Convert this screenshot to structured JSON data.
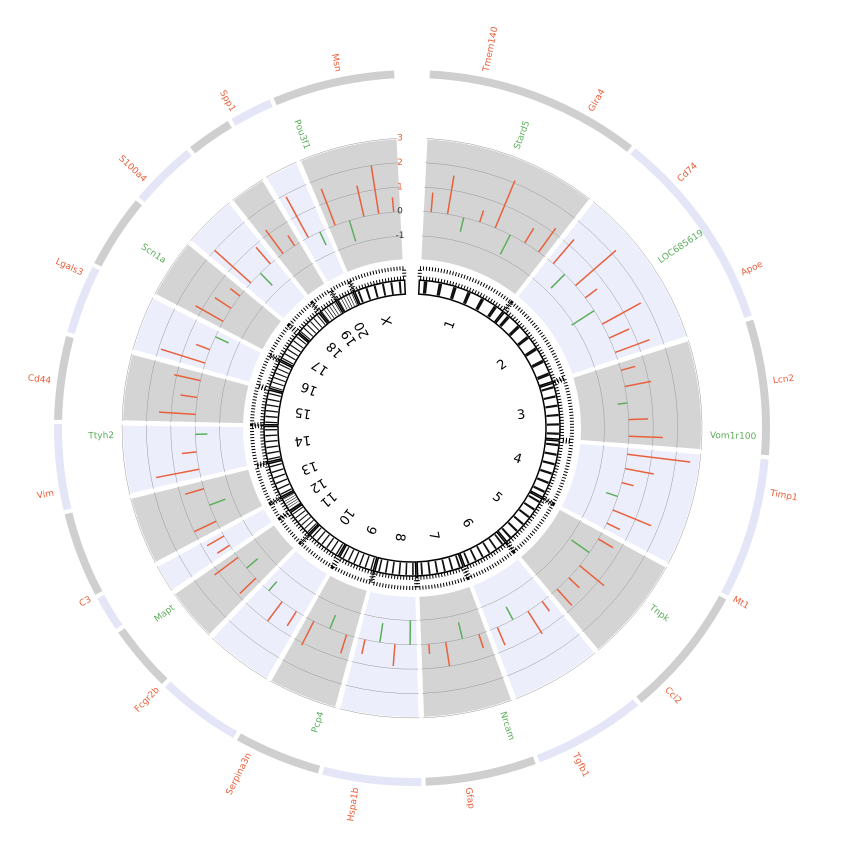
{
  "chart_data": {
    "type": "circos",
    "categories": [
      "1",
      "2",
      "3",
      "4",
      "5",
      "6",
      "7",
      "8",
      "9",
      "10",
      "11",
      "12",
      "13",
      "14",
      "15",
      "16",
      "17",
      "18",
      "19",
      "20",
      "X"
    ],
    "lengths": [
      282,
      266,
      177,
      184,
      173,
      147,
      145,
      129,
      113,
      110,
      87,
      46,
      111,
      112,
      109,
      90,
      97,
      87,
      59,
      55,
      160
    ],
    "ylim": [
      -2,
      3
    ],
    "yticks": [
      -1,
      0,
      1,
      2,
      3
    ],
    "peaks": [
      [
        0.8,
        1.6,
        -0.6,
        0.5,
        2.1,
        -0.9,
        0.7,
        1.2
      ],
      [
        1.3,
        -0.8,
        2.2,
        0.6,
        -1.1,
        1.8,
        0.9,
        1.5
      ],
      [
        0.6,
        1.1,
        -0.4,
        0.8,
        1.4
      ],
      [
        2.6,
        1.2,
        0.5,
        -0.5,
        1.7,
        0.6
      ],
      [
        0.7,
        -0.9,
        1.3,
        0.6,
        0.9
      ],
      [
        0.5,
        1.1,
        -0.6,
        0.8
      ],
      [
        0.6,
        -0.7,
        1.0,
        0.4
      ],
      [
        -1.0,
        0.9,
        -0.8,
        0.6
      ],
      [
        0.8,
        -0.6,
        1.1
      ],
      [
        0.7,
        1.0,
        -0.5
      ],
      [
        0.9,
        -0.6,
        1.2
      ],
      [
        0.6,
        0.8
      ],
      [
        1.0,
        -0.7,
        0.8
      ],
      [
        1.8,
        0.6,
        -0.5
      ],
      [
        1.5,
        0.7,
        1.1
      ],
      [
        1.9,
        0.6,
        -0.6
      ],
      [
        1.3,
        0.8,
        0.5
      ],
      [
        2.0,
        -0.7,
        0.9
      ],
      [
        1.2,
        0.5
      ],
      [
        1.9,
        -0.6
      ],
      [
        1.6,
        -0.9,
        1.3,
        2.0,
        0.6
      ]
    ],
    "up_color": "#e8603c",
    "down_color": "#5cae5c",
    "genes_down": [
      "Stard5",
      "LOC685619",
      "Vom1r100",
      "Tnpk",
      "Nrcam",
      "Pcp4",
      "Mapt",
      "Ttyh2",
      "Scn1a",
      "Pou3f1"
    ],
    "genes_up": [
      "Tmem140",
      "Glra4",
      "Cd74",
      "Apoe",
      "Lcn2",
      "Timp1",
      "Mt1",
      "Ccl2",
      "Tgfb1",
      "Gfap",
      "Hspa1b",
      "Serpina3n",
      "Fcgr2b",
      "C3",
      "Vim",
      "Cd44",
      "Lgals3",
      "S100a4",
      "Spp1",
      "Msn"
    ]
  }
}
